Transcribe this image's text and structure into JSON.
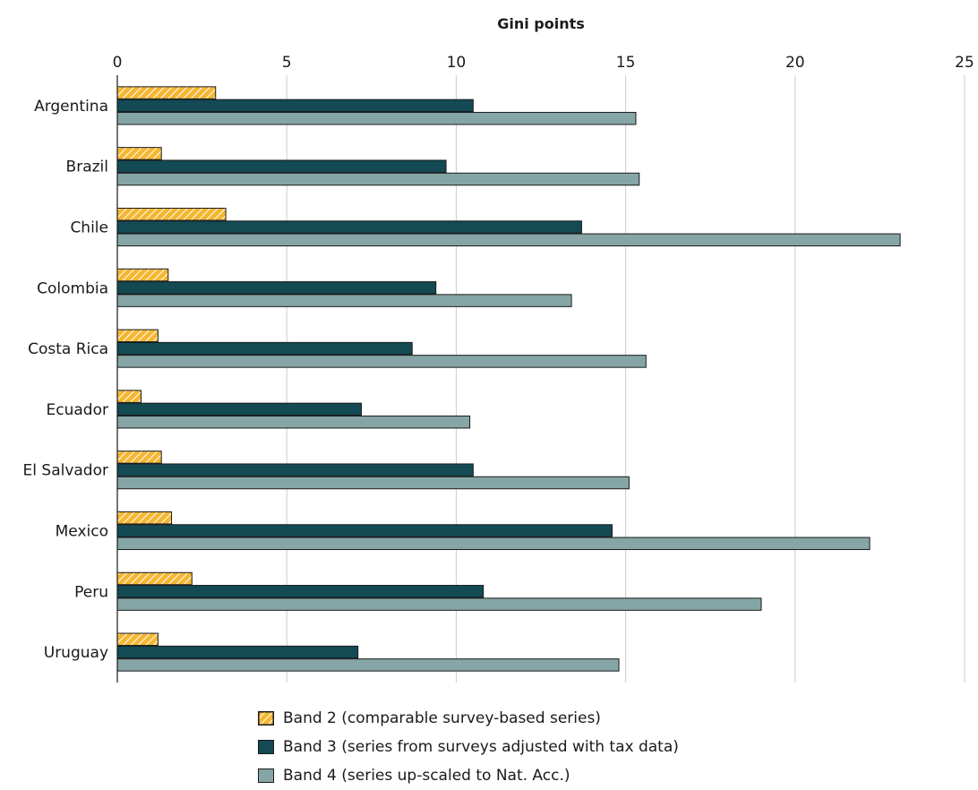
{
  "chart_data": {
    "type": "bar",
    "orientation": "horizontal",
    "title": "",
    "xlabel": "Gini points",
    "ylabel": "",
    "xlim": [
      0,
      25
    ],
    "xticks": [
      0,
      5,
      10,
      15,
      20,
      25
    ],
    "x_axis_position": "top",
    "grid": true,
    "legend_position": "bottom",
    "categories": [
      "Argentina",
      "Brazil",
      "Chile",
      "Colombia",
      "Costa Rica",
      "Ecuador",
      "El Salvador",
      "Mexico",
      "Peru",
      "Uruguay"
    ],
    "series": [
      {
        "name": "Band 2 (comparable survey-based series)",
        "color": "#f5b731",
        "pattern": "hatched",
        "values": [
          2.9,
          1.3,
          3.2,
          1.5,
          1.2,
          0.7,
          1.3,
          1.6,
          2.2,
          1.2
        ]
      },
      {
        "name": "Band 3 (series from surveys adjusted with tax data)",
        "color": "#134a54",
        "pattern": "solid",
        "values": [
          10.5,
          9.7,
          13.7,
          9.4,
          8.7,
          7.2,
          10.5,
          14.6,
          10.8,
          7.1
        ]
      },
      {
        "name": "Band 4 (series up-scaled to Nat. Acc.)",
        "color": "#86a5a6",
        "pattern": "solid",
        "values": [
          15.3,
          15.4,
          23.1,
          13.4,
          15.6,
          10.4,
          15.1,
          22.2,
          19.0,
          14.8
        ]
      }
    ]
  }
}
